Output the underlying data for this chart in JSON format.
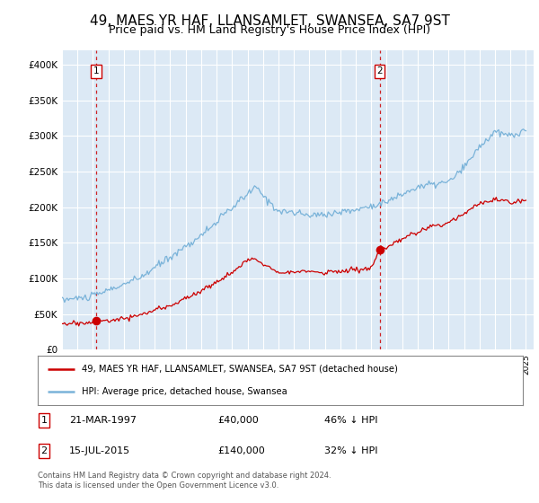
{
  "title": "49, MAES YR HAF, LLANSAMLET, SWANSEA, SA7 9ST",
  "subtitle": "Price paid vs. HM Land Registry's House Price Index (HPI)",
  "title_fontsize": 11,
  "subtitle_fontsize": 9,
  "plot_bg_color": "#dce9f5",
  "hpi_color": "#7ab3d9",
  "price_color": "#cc0000",
  "marker_color": "#cc0000",
  "vline_color": "#cc0000",
  "ylim": [
    0,
    420000
  ],
  "yticks": [
    0,
    50000,
    100000,
    150000,
    200000,
    250000,
    300000,
    350000,
    400000
  ],
  "legend_label_price": "49, MAES YR HAF, LLANSAMLET, SWANSEA, SA7 9ST (detached house)",
  "legend_label_hpi": "HPI: Average price, detached house, Swansea",
  "note_date1": "21-MAR-1997",
  "note_price1": "£40,000",
  "note_pct1": "46% ↓ HPI",
  "note_date2": "15-JUL-2015",
  "note_price2": "£140,000",
  "note_pct2": "32% ↓ HPI",
  "footer": "Contains HM Land Registry data © Crown copyright and database right 2024.\nThis data is licensed under the Open Government Licence v3.0.",
  "purchase1_year": 1997.22,
  "purchase1_price": 40000,
  "purchase2_year": 2015.54,
  "purchase2_price": 140000
}
